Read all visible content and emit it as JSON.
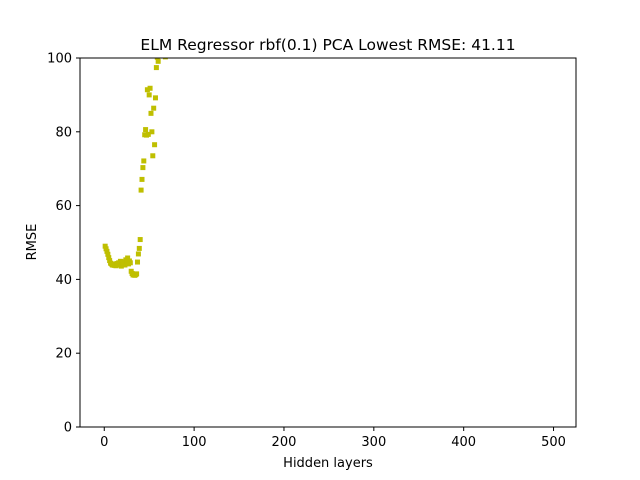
{
  "chart_data": {
    "type": "scatter",
    "title": "ELM Regressor rbf(0.1) PCA Lowest RMSE: 41.11",
    "xlabel": "Hidden layers",
    "ylabel": "RMSE",
    "xlim": [
      -27,
      525
    ],
    "ylim": [
      0,
      100
    ],
    "xticks": [
      0,
      100,
      200,
      300,
      400,
      500
    ],
    "yticks": [
      0,
      20,
      40,
      60,
      80,
      100
    ],
    "grid": false,
    "marker": "square",
    "color": "#bfbf00",
    "series": [
      {
        "x": [
          1,
          2,
          3,
          4,
          5,
          6,
          7,
          8,
          9,
          10,
          11,
          12,
          13,
          14,
          15,
          16,
          17,
          18,
          19,
          20,
          21,
          22,
          23,
          24,
          25,
          26,
          27,
          28,
          29,
          30,
          31,
          32,
          33,
          34,
          35,
          36,
          37,
          38,
          39,
          40,
          41,
          42,
          43,
          44,
          45,
          46,
          47,
          48,
          49,
          50,
          51,
          52,
          53,
          54,
          55,
          56,
          57,
          58,
          59,
          60,
          68
        ],
        "y": [
          49,
          48.3,
          47.6,
          46.8,
          45.9,
          45.1,
          44.4,
          44.2,
          43.9,
          44.1,
          43.8,
          44,
          43.7,
          44.3,
          43.9,
          44.5,
          44.2,
          44.9,
          43.6,
          44.6,
          44.1,
          44.8,
          43.9,
          45.3,
          44.6,
          45.8,
          44.2,
          45,
          44.5,
          42.2,
          41.6,
          41.2,
          41.4,
          41.1,
          41.3,
          41.5,
          44.7,
          46.9,
          48.4,
          50.8,
          64.2,
          67.1,
          70.3,
          72.1,
          79.2,
          80.6,
          79.1,
          91.4,
          79.3,
          90,
          91.8,
          85,
          80,
          73.5,
          86.4,
          76.5,
          89.2,
          97.4,
          100.2,
          99.1,
          100.3
        ]
      }
    ]
  }
}
